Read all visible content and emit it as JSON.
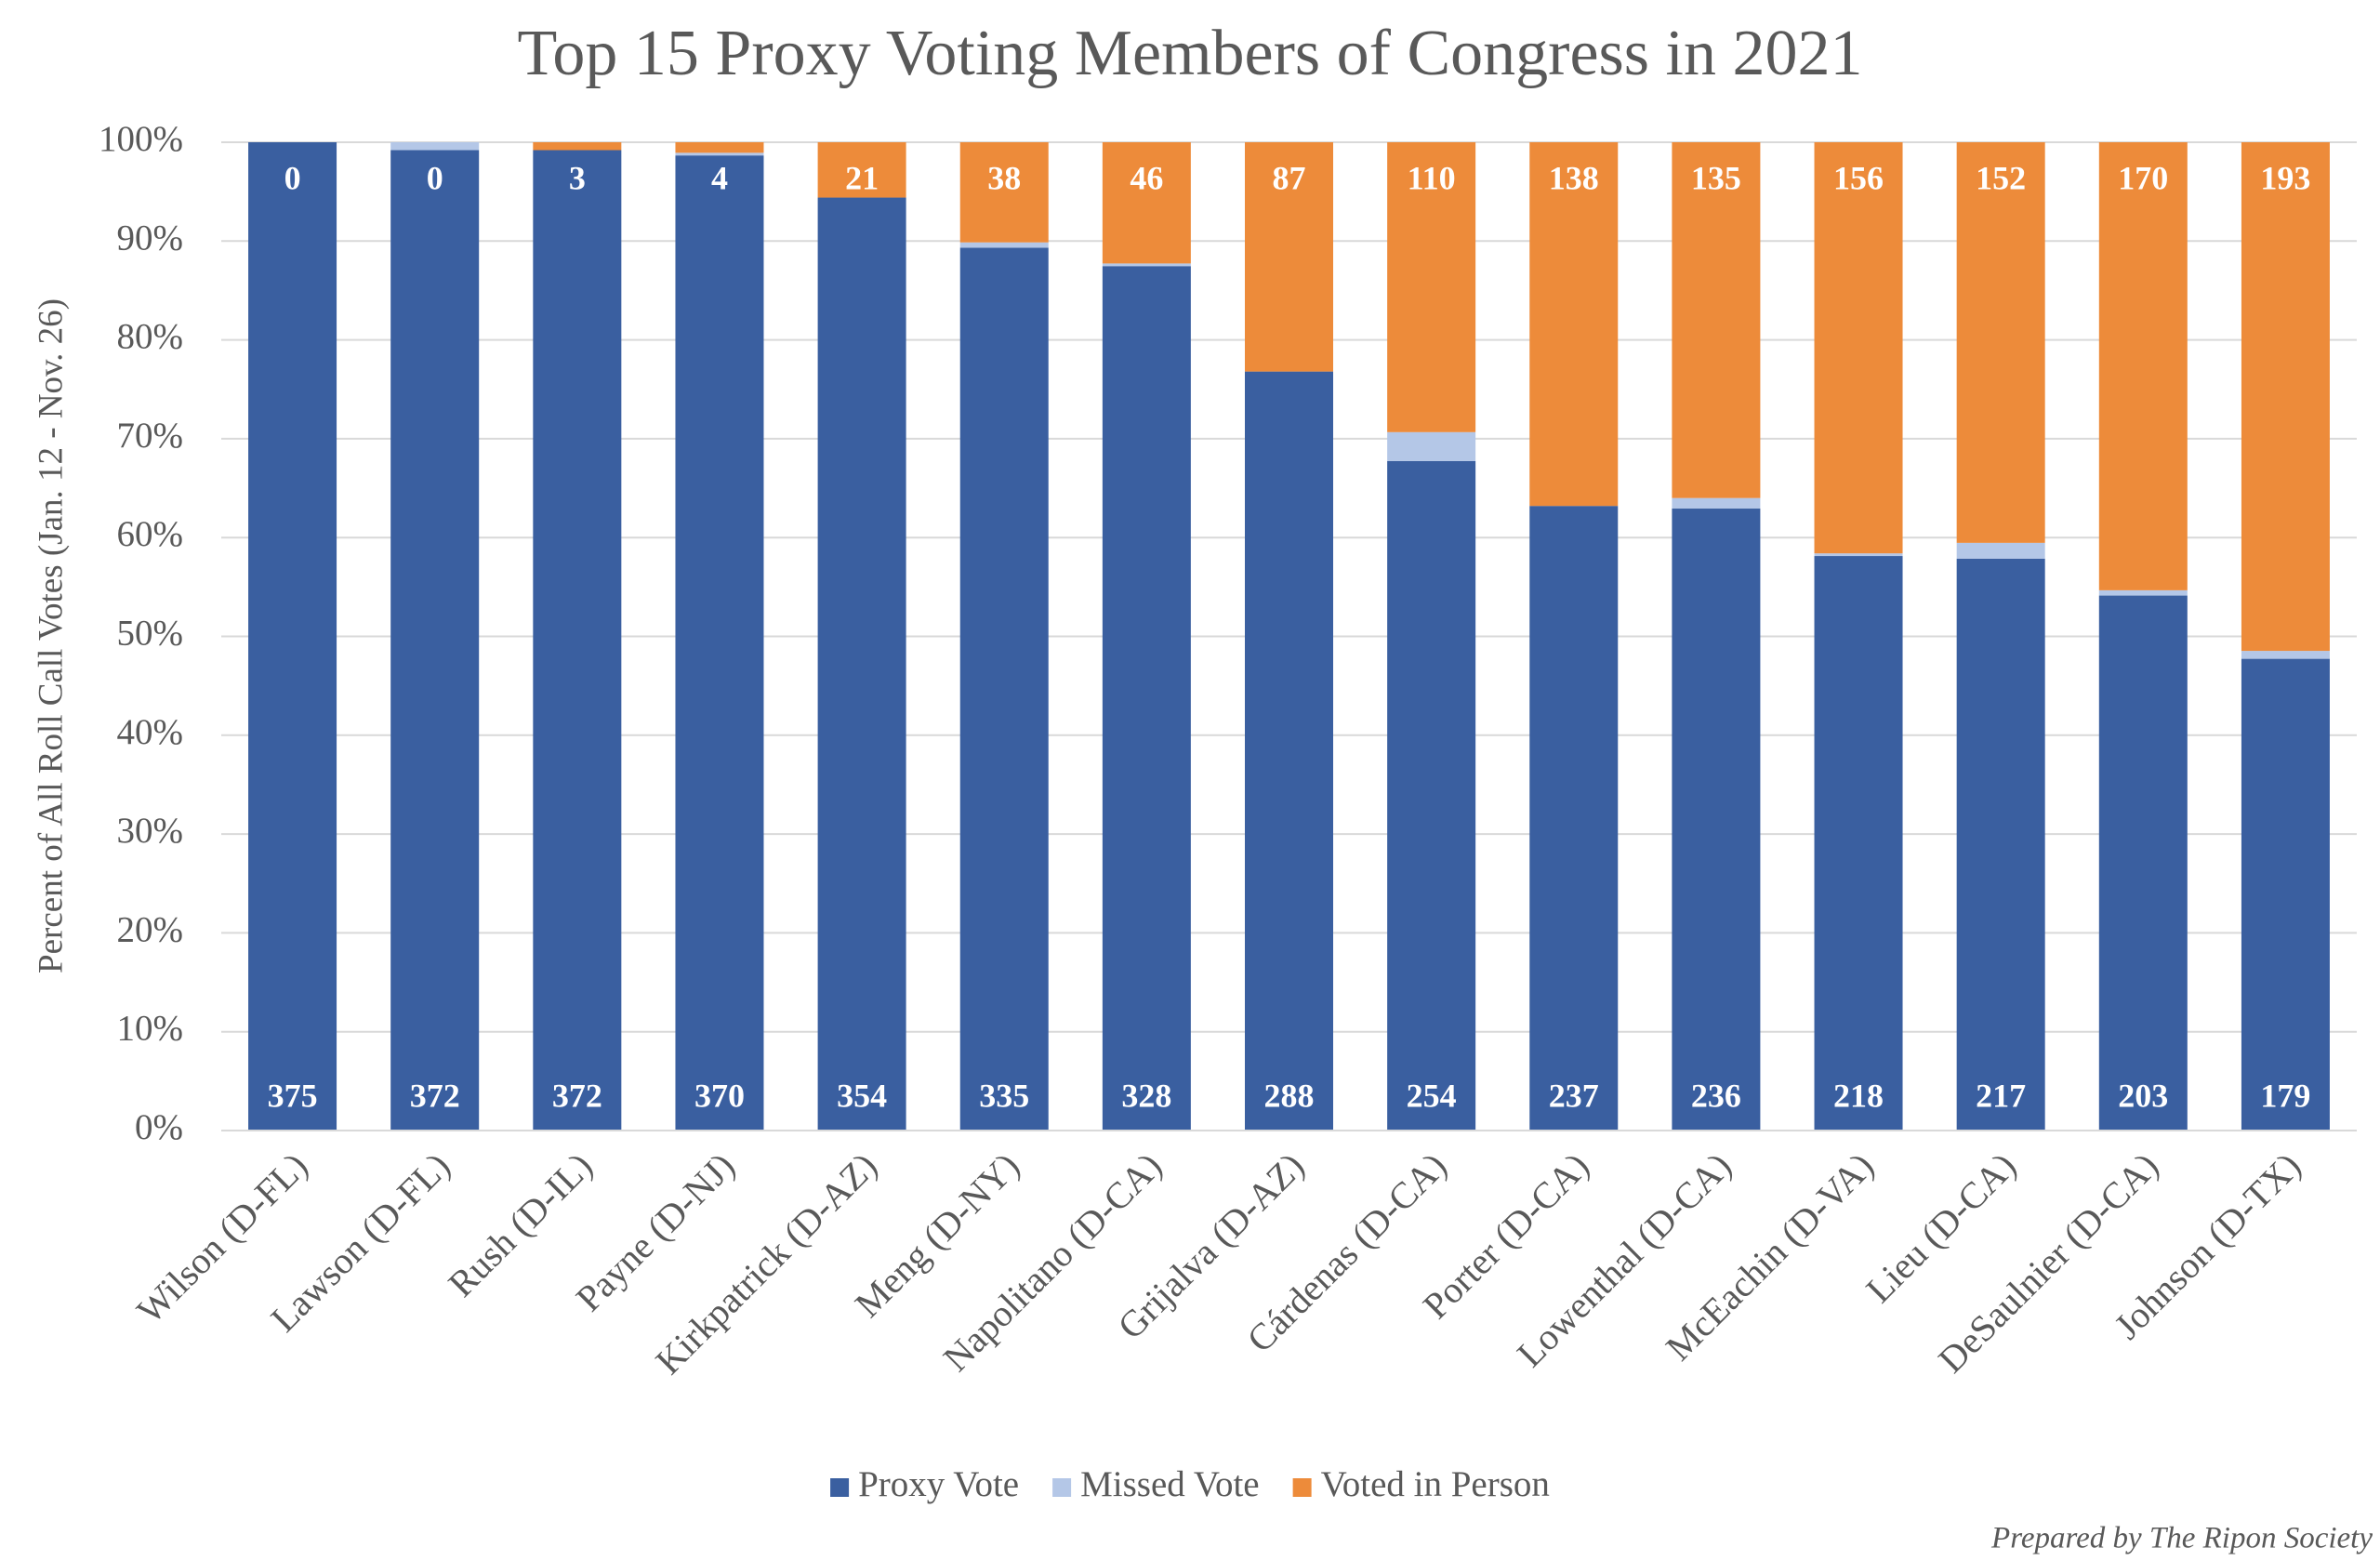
{
  "chart_data": {
    "type": "bar",
    "stacking": "percent",
    "title": "Top 15 Proxy Voting Members of Congress in 2021",
    "y_label": "Percent of All Roll Call Votes (Jan. 12 - Nov. 26)",
    "footnote": "Prepared by The Ripon Society",
    "categories": [
      "Wilson (D-FL)",
      "Lawson (D-FL)",
      "Rush (D-IL)",
      "Payne (D-NJ)",
      "Kirkpatrick (D-AZ)",
      "Meng (D-NY)",
      "Napolitano (D-CA)",
      "Grijalva (D-AZ)",
      "Cárdenas (D-CA)",
      "Porter (D-CA)",
      "Lowenthal (D-CA)",
      "McEachin (D-VA)",
      "Lieu (D-CA)",
      "DeSaulnier (D-CA)",
      "Johnson (D-TX)"
    ],
    "series": [
      {
        "name": "Proxy Vote",
        "color": "#3a5fa0",
        "data_labels": "bottom",
        "values": [
          375,
          372,
          372,
          370,
          354,
          335,
          328,
          288,
          254,
          237,
          236,
          218,
          217,
          203,
          179
        ]
      },
      {
        "name": "Missed Vote",
        "color": "#b4c7e7",
        "values": [
          0,
          3,
          0,
          1,
          0,
          2,
          1,
          0,
          11,
          0,
          4,
          1,
          6,
          2,
          3
        ]
      },
      {
        "name": "Voted in Person",
        "color": "#ed8b3a",
        "data_labels": "top",
        "values": [
          0,
          0,
          3,
          4,
          21,
          38,
          46,
          87,
          110,
          138,
          135,
          156,
          152,
          170,
          193
        ]
      }
    ],
    "ylim": [
      0,
      100
    ],
    "yticks": [
      {
        "value": 0,
        "label": "0%"
      },
      {
        "value": 10,
        "label": "10%"
      },
      {
        "value": 20,
        "label": "20%"
      },
      {
        "value": 30,
        "label": "30%"
      },
      {
        "value": 40,
        "label": "40%"
      },
      {
        "value": 50,
        "label": "50%"
      },
      {
        "value": 60,
        "label": "60%"
      },
      {
        "value": 70,
        "label": "70%"
      },
      {
        "value": 80,
        "label": "80%"
      },
      {
        "value": 90,
        "label": "90%"
      },
      {
        "value": 100,
        "label": "100%"
      }
    ],
    "grid": true,
    "legend": "bottom"
  }
}
